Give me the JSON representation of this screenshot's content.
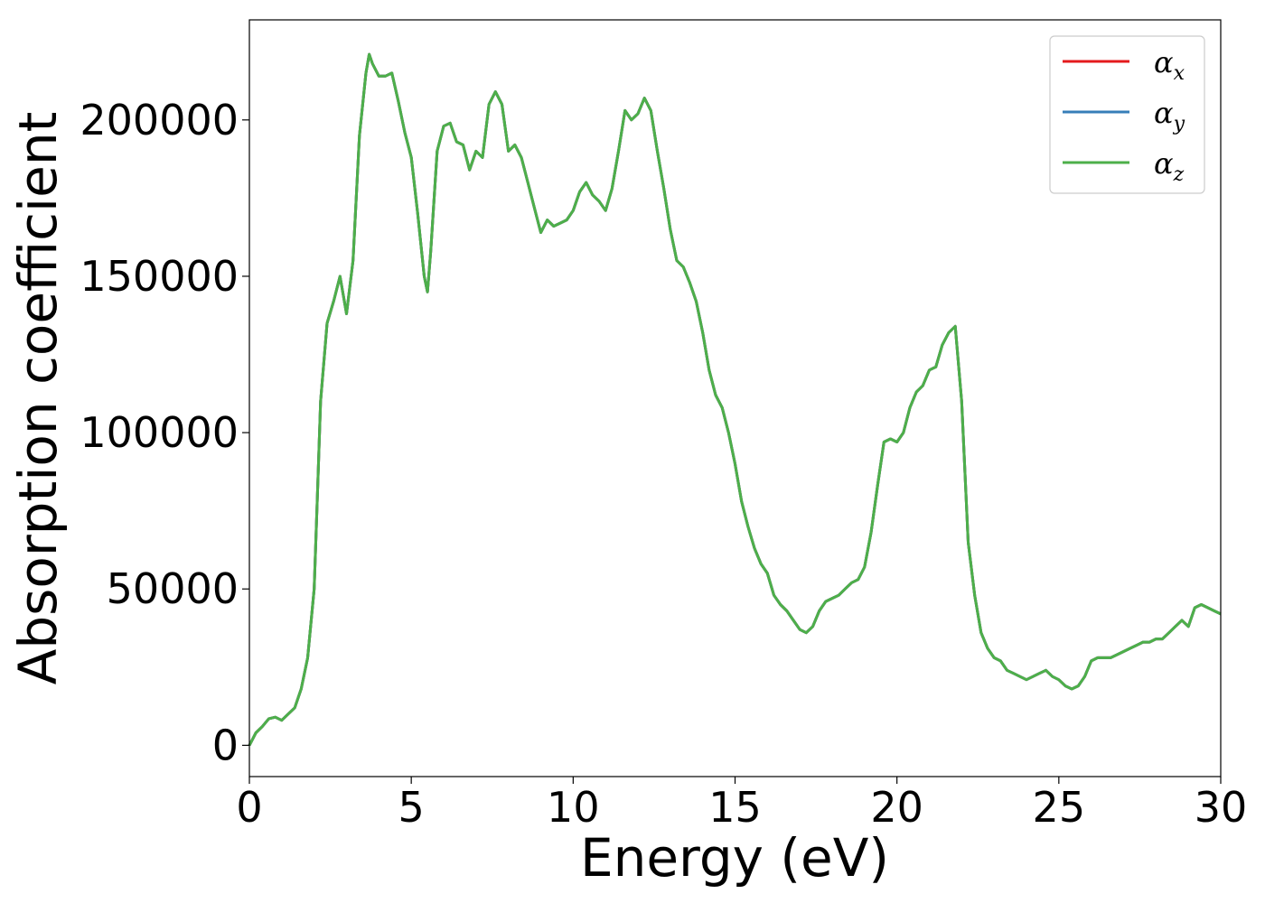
{
  "chart_data": {
    "type": "line",
    "xlabel": "Energy (eV)",
    "ylabel": "Absorption coefficient",
    "xlim": [
      0,
      30
    ],
    "ylim": [
      -10000,
      232000
    ],
    "xticks": [
      0,
      5,
      10,
      15,
      20,
      25,
      30
    ],
    "xtick_labels": [
      "0",
      "5",
      "10",
      "15",
      "20",
      "25",
      "30"
    ],
    "yticks": [
      0,
      50000,
      100000,
      150000,
      200000
    ],
    "ytick_labels": [
      "0",
      "50000",
      "100000",
      "150000",
      "200000"
    ],
    "grid": false,
    "legend": {
      "position": "top-right"
    },
    "series": [
      {
        "name": "αx",
        "legend_base": "α",
        "legend_sub": "x",
        "color": "#e41a1c",
        "x": [
          0,
          0.2,
          0.4,
          0.6,
          0.8,
          1.0,
          1.2,
          1.4,
          1.6,
          1.8,
          2.0,
          2.1,
          2.2,
          2.4,
          2.6,
          2.8,
          2.9,
          3.0,
          3.2,
          3.4,
          3.6,
          3.7,
          3.8,
          4.0,
          4.2,
          4.4,
          4.6,
          4.8,
          5.0,
          5.2,
          5.4,
          5.5,
          5.6,
          5.8,
          6.0,
          6.2,
          6.4,
          6.6,
          6.8,
          7.0,
          7.2,
          7.4,
          7.6,
          7.8,
          8.0,
          8.2,
          8.4,
          8.6,
          8.8,
          9.0,
          9.2,
          9.4,
          9.6,
          9.8,
          10.0,
          10.2,
          10.4,
          10.6,
          10.8,
          11.0,
          11.2,
          11.4,
          11.6,
          11.8,
          12.0,
          12.2,
          12.4,
          12.6,
          12.8,
          13.0,
          13.2,
          13.4,
          13.6,
          13.8,
          14.0,
          14.2,
          14.4,
          14.6,
          14.8,
          15.0,
          15.2,
          15.4,
          15.6,
          15.8,
          16.0,
          16.2,
          16.4,
          16.6,
          16.8,
          17.0,
          17.2,
          17.4,
          17.6,
          17.8,
          18.0,
          18.2,
          18.4,
          18.6,
          18.8,
          19.0,
          19.2,
          19.4,
          19.6,
          19.8,
          20.0,
          20.2,
          20.4,
          20.6,
          20.8,
          21.0,
          21.2,
          21.4,
          21.6,
          21.8,
          22.0,
          22.2,
          22.4,
          22.6,
          22.8,
          23.0,
          23.2,
          23.4,
          23.6,
          23.8,
          24.0,
          24.2,
          24.4,
          24.6,
          24.8,
          25.0,
          25.2,
          25.4,
          25.6,
          25.8,
          26.0,
          26.2,
          26.4,
          26.6,
          26.8,
          27.0,
          27.2,
          27.4,
          27.6,
          27.8,
          28.0,
          28.2,
          28.4,
          28.6,
          28.8,
          29.0,
          29.2,
          29.4,
          29.6,
          29.8,
          30.0
        ],
        "y": [
          0,
          4000,
          6000,
          8500,
          9000,
          8000,
          10000,
          12000,
          18000,
          28000,
          50000,
          80000,
          110000,
          135000,
          142000,
          150000,
          144000,
          138000,
          155000,
          195000,
          215000,
          221000,
          218000,
          214000,
          214000,
          215000,
          206000,
          196000,
          188000,
          170000,
          150000,
          145000,
          158000,
          190000,
          198000,
          199000,
          193000,
          192000,
          184000,
          190000,
          188000,
          205000,
          209000,
          205000,
          190000,
          192000,
          188000,
          180000,
          172000,
          164000,
          168000,
          166000,
          167000,
          168000,
          171000,
          177000,
          180000,
          176000,
          174000,
          171000,
          178000,
          190000,
          203000,
          200000,
          202000,
          207000,
          203000,
          190000,
          178000,
          165000,
          155000,
          153000,
          148000,
          142000,
          132000,
          120000,
          112000,
          108000,
          100000,
          90000,
          78000,
          70000,
          63000,
          58000,
          55000,
          48000,
          45000,
          43000,
          40000,
          37000,
          36000,
          38000,
          43000,
          46000,
          47000,
          48000,
          50000,
          52000,
          53000,
          57000,
          68000,
          83000,
          97000,
          98000,
          97000,
          100000,
          108000,
          113000,
          115000,
          120000,
          121000,
          128000,
          132000,
          134000,
          110000,
          65000,
          48000,
          36000,
          31000,
          28000,
          27000,
          24000,
          23000,
          22000,
          21000,
          22000,
          23000,
          24000,
          22000,
          21000,
          19000,
          18000,
          19000,
          22000,
          27000,
          28000,
          28000,
          28000,
          29000,
          30000,
          31000,
          32000,
          33000,
          33000,
          34000,
          34000,
          36000,
          38000,
          40000,
          38000,
          44000,
          45000,
          44000,
          43000,
          42000
        ]
      },
      {
        "name": "αy",
        "legend_base": "α",
        "legend_sub": "y",
        "color": "#377eb8",
        "x": [
          0,
          0.2,
          0.4,
          0.6,
          0.8,
          1.0,
          1.2,
          1.4,
          1.6,
          1.8,
          2.0,
          2.1,
          2.2,
          2.4,
          2.6,
          2.8,
          2.9,
          3.0,
          3.2,
          3.4,
          3.6,
          3.7,
          3.8,
          4.0,
          4.2,
          4.4,
          4.6,
          4.8,
          5.0,
          5.2,
          5.4,
          5.5,
          5.6,
          5.8,
          6.0,
          6.2,
          6.4,
          6.6,
          6.8,
          7.0,
          7.2,
          7.4,
          7.6,
          7.8,
          8.0,
          8.2,
          8.4,
          8.6,
          8.8,
          9.0,
          9.2,
          9.4,
          9.6,
          9.8,
          10.0,
          10.2,
          10.4,
          10.6,
          10.8,
          11.0,
          11.2,
          11.4,
          11.6,
          11.8,
          12.0,
          12.2,
          12.4,
          12.6,
          12.8,
          13.0,
          13.2,
          13.4,
          13.6,
          13.8,
          14.0,
          14.2,
          14.4,
          14.6,
          14.8,
          15.0,
          15.2,
          15.4,
          15.6,
          15.8,
          16.0,
          16.2,
          16.4,
          16.6,
          16.8,
          17.0,
          17.2,
          17.4,
          17.6,
          17.8,
          18.0,
          18.2,
          18.4,
          18.6,
          18.8,
          19.0,
          19.2,
          19.4,
          19.6,
          19.8,
          20.0,
          20.2,
          20.4,
          20.6,
          20.8,
          21.0,
          21.2,
          21.4,
          21.6,
          21.8,
          22.0,
          22.2,
          22.4,
          22.6,
          22.8,
          23.0,
          23.2,
          23.4,
          23.6,
          23.8,
          24.0,
          24.2,
          24.4,
          24.6,
          24.8,
          25.0,
          25.2,
          25.4,
          25.6,
          25.8,
          26.0,
          26.2,
          26.4,
          26.6,
          26.8,
          27.0,
          27.2,
          27.4,
          27.6,
          27.8,
          28.0,
          28.2,
          28.4,
          28.6,
          28.8,
          29.0,
          29.2,
          29.4,
          29.6,
          29.8,
          30.0
        ],
        "y": [
          0,
          4000,
          6000,
          8500,
          9000,
          8000,
          10000,
          12000,
          18000,
          28000,
          50000,
          80000,
          110000,
          135000,
          142000,
          150000,
          144000,
          138000,
          155000,
          195000,
          215000,
          221000,
          218000,
          214000,
          214000,
          215000,
          206000,
          196000,
          188000,
          170000,
          150000,
          145000,
          158000,
          190000,
          198000,
          199000,
          193000,
          192000,
          184000,
          190000,
          188000,
          205000,
          209000,
          205000,
          190000,
          192000,
          188000,
          180000,
          172000,
          164000,
          168000,
          166000,
          167000,
          168000,
          171000,
          177000,
          180000,
          176000,
          174000,
          171000,
          178000,
          190000,
          203000,
          200000,
          202000,
          207000,
          203000,
          190000,
          178000,
          165000,
          155000,
          153000,
          148000,
          142000,
          132000,
          120000,
          112000,
          108000,
          100000,
          90000,
          78000,
          70000,
          63000,
          58000,
          55000,
          48000,
          45000,
          43000,
          40000,
          37000,
          36000,
          38000,
          43000,
          46000,
          47000,
          48000,
          50000,
          52000,
          53000,
          57000,
          68000,
          83000,
          97000,
          98000,
          97000,
          100000,
          108000,
          113000,
          115000,
          120000,
          121000,
          128000,
          132000,
          134000,
          110000,
          65000,
          48000,
          36000,
          31000,
          28000,
          27000,
          24000,
          23000,
          22000,
          21000,
          22000,
          23000,
          24000,
          22000,
          21000,
          19000,
          18000,
          19000,
          22000,
          27000,
          28000,
          28000,
          28000,
          29000,
          30000,
          31000,
          32000,
          33000,
          33000,
          34000,
          34000,
          36000,
          38000,
          40000,
          38000,
          44000,
          45000,
          44000,
          43000,
          42000
        ]
      },
      {
        "name": "αz",
        "legend_base": "α",
        "legend_sub": "z",
        "color": "#4daf4a",
        "x": [
          0,
          0.2,
          0.4,
          0.6,
          0.8,
          1.0,
          1.2,
          1.4,
          1.6,
          1.8,
          2.0,
          2.1,
          2.2,
          2.4,
          2.6,
          2.8,
          2.9,
          3.0,
          3.2,
          3.4,
          3.6,
          3.7,
          3.8,
          4.0,
          4.2,
          4.4,
          4.6,
          4.8,
          5.0,
          5.2,
          5.4,
          5.5,
          5.6,
          5.8,
          6.0,
          6.2,
          6.4,
          6.6,
          6.8,
          7.0,
          7.2,
          7.4,
          7.6,
          7.8,
          8.0,
          8.2,
          8.4,
          8.6,
          8.8,
          9.0,
          9.2,
          9.4,
          9.6,
          9.8,
          10.0,
          10.2,
          10.4,
          10.6,
          10.8,
          11.0,
          11.2,
          11.4,
          11.6,
          11.8,
          12.0,
          12.2,
          12.4,
          12.6,
          12.8,
          13.0,
          13.2,
          13.4,
          13.6,
          13.8,
          14.0,
          14.2,
          14.4,
          14.6,
          14.8,
          15.0,
          15.2,
          15.4,
          15.6,
          15.8,
          16.0,
          16.2,
          16.4,
          16.6,
          16.8,
          17.0,
          17.2,
          17.4,
          17.6,
          17.8,
          18.0,
          18.2,
          18.4,
          18.6,
          18.8,
          19.0,
          19.2,
          19.4,
          19.6,
          19.8,
          20.0,
          20.2,
          20.4,
          20.6,
          20.8,
          21.0,
          21.2,
          21.4,
          21.6,
          21.8,
          22.0,
          22.2,
          22.4,
          22.6,
          22.8,
          23.0,
          23.2,
          23.4,
          23.6,
          23.8,
          24.0,
          24.2,
          24.4,
          24.6,
          24.8,
          25.0,
          25.2,
          25.4,
          25.6,
          25.8,
          26.0,
          26.2,
          26.4,
          26.6,
          26.8,
          27.0,
          27.2,
          27.4,
          27.6,
          27.8,
          28.0,
          28.2,
          28.4,
          28.6,
          28.8,
          29.0,
          29.2,
          29.4,
          29.6,
          29.8,
          30.0
        ],
        "y": [
          0,
          4000,
          6000,
          8500,
          9000,
          8000,
          10000,
          12000,
          18000,
          28000,
          50000,
          80000,
          110000,
          135000,
          142000,
          150000,
          144000,
          138000,
          155000,
          195000,
          215000,
          221000,
          218000,
          214000,
          214000,
          215000,
          206000,
          196000,
          188000,
          170000,
          150000,
          145000,
          158000,
          190000,
          198000,
          199000,
          193000,
          192000,
          184000,
          190000,
          188000,
          205000,
          209000,
          205000,
          190000,
          192000,
          188000,
          180000,
          172000,
          164000,
          168000,
          166000,
          167000,
          168000,
          171000,
          177000,
          180000,
          176000,
          174000,
          171000,
          178000,
          190000,
          203000,
          200000,
          202000,
          207000,
          203000,
          190000,
          178000,
          165000,
          155000,
          153000,
          148000,
          142000,
          132000,
          120000,
          112000,
          108000,
          100000,
          90000,
          78000,
          70000,
          63000,
          58000,
          55000,
          48000,
          45000,
          43000,
          40000,
          37000,
          36000,
          38000,
          43000,
          46000,
          47000,
          48000,
          50000,
          52000,
          53000,
          57000,
          68000,
          83000,
          97000,
          98000,
          97000,
          100000,
          108000,
          113000,
          115000,
          120000,
          121000,
          128000,
          132000,
          134000,
          110000,
          65000,
          48000,
          36000,
          31000,
          28000,
          27000,
          24000,
          23000,
          22000,
          21000,
          22000,
          23000,
          24000,
          22000,
          21000,
          19000,
          18000,
          19000,
          22000,
          27000,
          28000,
          28000,
          28000,
          29000,
          30000,
          31000,
          32000,
          33000,
          33000,
          34000,
          34000,
          36000,
          38000,
          40000,
          38000,
          44000,
          45000,
          44000,
          43000,
          42000
        ]
      }
    ]
  }
}
